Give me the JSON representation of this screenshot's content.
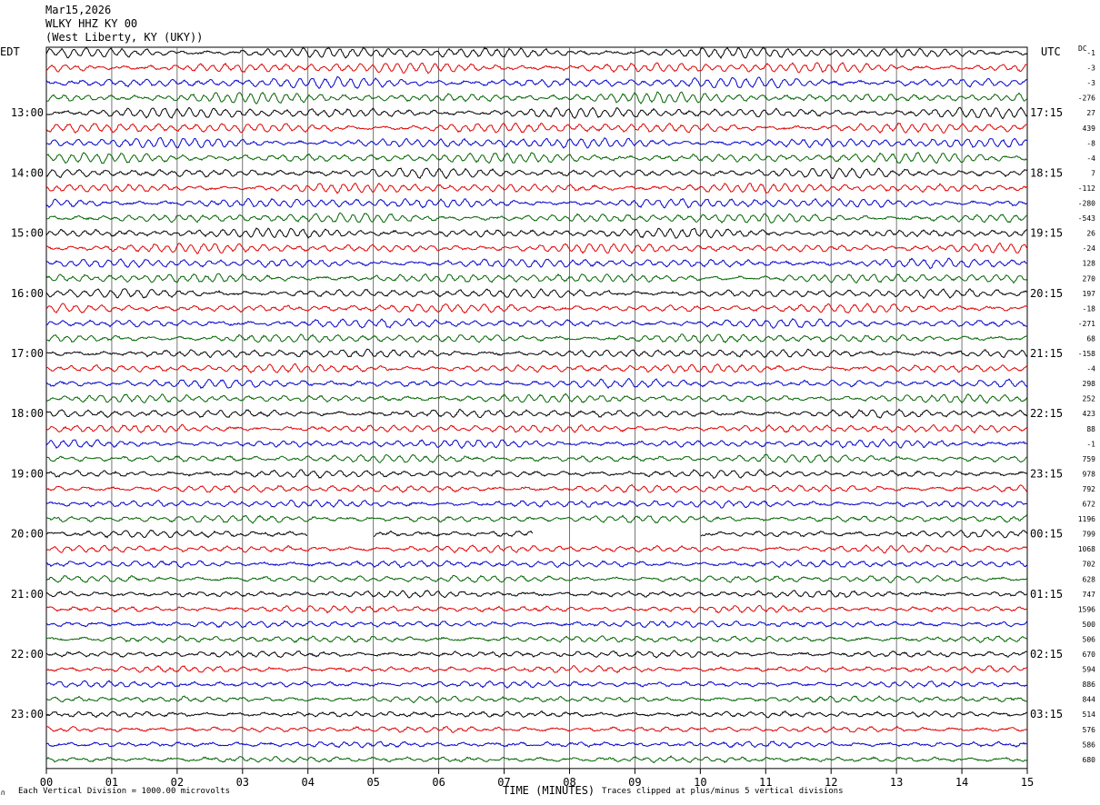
{
  "header": {
    "date": "Mar15,2026",
    "station": "WLKY HHZ KY 00",
    "location": "(West Liberty, KY (UKY))"
  },
  "left_tz": "EDT",
  "right_tz": "UTC",
  "dc_label": "DC",
  "footer": {
    "scale_note": "Each Vertical Division = 1000.00 microvolts",
    "clip_note": "Traces clipped at plus/minus 5 vertical divisions",
    "corner_mark": "∩"
  },
  "chart_data": {
    "type": "line",
    "title": "",
    "xlabel": "TIME (MINUTES)",
    "ylabel": "",
    "xlim": [
      0,
      15
    ],
    "x_ticks": [
      "00",
      "01",
      "02",
      "03",
      "04",
      "05",
      "06",
      "07",
      "08",
      "09",
      "10",
      "11",
      "12",
      "13",
      "14",
      "15"
    ],
    "rows_per_hour": 4,
    "trace_colors": [
      "#000000",
      "#e00000",
      "#0000cc",
      "#006400"
    ],
    "left_hour_labels": [
      "13:00",
      "14:00",
      "15:00",
      "16:00",
      "17:00",
      "18:00",
      "19:00",
      "20:00",
      "21:00",
      "22:00",
      "23:00"
    ],
    "right_hour_labels": [
      "17:15",
      "18:15",
      "19:15",
      "20:15",
      "21:15",
      "22:15",
      "23:15",
      "00:15",
      "01:15",
      "02:15",
      "03:15"
    ],
    "dc_offsets": [
      "-1",
      "-3",
      "-3",
      "-276",
      "27",
      "439",
      "-8",
      "-4",
      "7",
      "-112",
      "-280",
      "-543",
      "26",
      "-24",
      "128",
      "270",
      "197",
      "-18",
      "-271",
      "68",
      "-158",
      "-4",
      "298",
      "252",
      "423",
      "88",
      "-1",
      "759",
      "978",
      "792",
      "672",
      "1196",
      "799",
      "1068",
      "702",
      "628",
      "747",
      "1596",
      "500",
      "506",
      "670",
      "594",
      "886",
      "844",
      "514",
      "576",
      "586",
      "680"
    ],
    "gaps": [
      {
        "row": 32,
        "from_min": 4.0,
        "to_min": 5.0
      },
      {
        "row": 32,
        "from_min": 7.45,
        "to_min": 10.0
      }
    ]
  }
}
